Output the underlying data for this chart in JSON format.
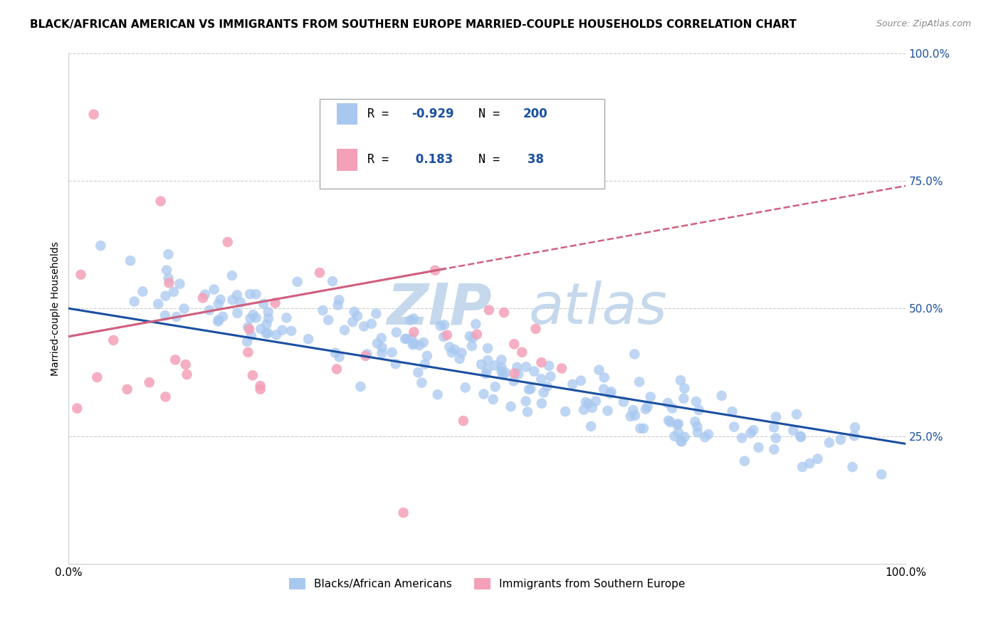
{
  "title": "BLACK/AFRICAN AMERICAN VS IMMIGRANTS FROM SOUTHERN EUROPE MARRIED-COUPLE HOUSEHOLDS CORRELATION CHART",
  "source": "Source: ZipAtlas.com",
  "ylabel": "Married-couple Households",
  "xlabel": "",
  "xlim": [
    0,
    1
  ],
  "ylim": [
    0,
    1
  ],
  "blue_R": -0.929,
  "blue_N": 200,
  "pink_R": 0.183,
  "pink_N": 38,
  "blue_color": "#a8c8f0",
  "pink_color": "#f4a0b8",
  "blue_line_color": "#1a4fa0",
  "pink_line_color": "#d06080",
  "grid_color": "#cccccc",
  "watermark_zip": "ZIP",
  "watermark_atlas": "atlas",
  "watermark_color": "#c5d8ec",
  "legend_label_blue": "Blacks/African Americans",
  "legend_label_pink": "Immigrants from Southern Europe",
  "title_fontsize": 11,
  "axis_label_fontsize": 10,
  "tick_fontsize": 11,
  "legend_fontsize": 11,
  "blue_line_start_y": 0.5,
  "blue_line_end_y": 0.235,
  "pink_line_start_y": 0.445,
  "pink_line_end_y": 0.74
}
